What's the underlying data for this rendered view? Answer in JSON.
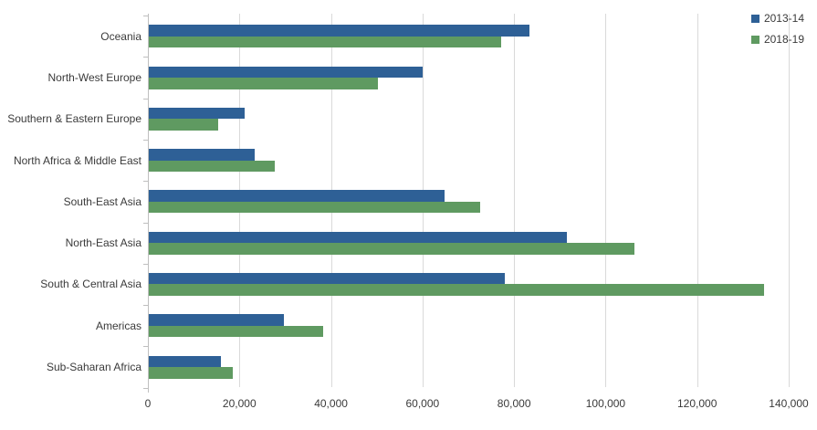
{
  "chart_data": {
    "type": "bar",
    "orientation": "horizontal",
    "title": "",
    "xlabel": "",
    "ylabel": "",
    "grid": true,
    "legend_position": "top-right",
    "xlim": [
      0,
      140000
    ],
    "x_ticks": [
      0,
      20000,
      40000,
      60000,
      80000,
      100000,
      120000,
      140000
    ],
    "x_tick_labels": [
      "0",
      "20,000",
      "40,000",
      "60,000",
      "80,000",
      "100,000",
      "120,000",
      "140,000"
    ],
    "categories": [
      "Oceania",
      "North-West Europe",
      "Southern & Eastern Europe",
      "North Africa & Middle East",
      "South-East Asia",
      "North-East Asia",
      "South & Central Asia",
      "Americas",
      "Sub-Saharan Africa"
    ],
    "series": [
      {
        "name": "2013-14",
        "color": "#2E6096",
        "values": [
          83100,
          59800,
          21000,
          23100,
          64600,
          91300,
          77700,
          29500,
          15700
        ]
      },
      {
        "name": "2018-19",
        "color": "#5F9A61",
        "values": [
          77000,
          50100,
          15200,
          27500,
          72300,
          106000,
          134500,
          38100,
          18400
        ]
      }
    ]
  },
  "colors": {
    "gridline": "#D9D9D9",
    "axis_line": "#BFBFBF",
    "text": "#3A3A3A"
  }
}
